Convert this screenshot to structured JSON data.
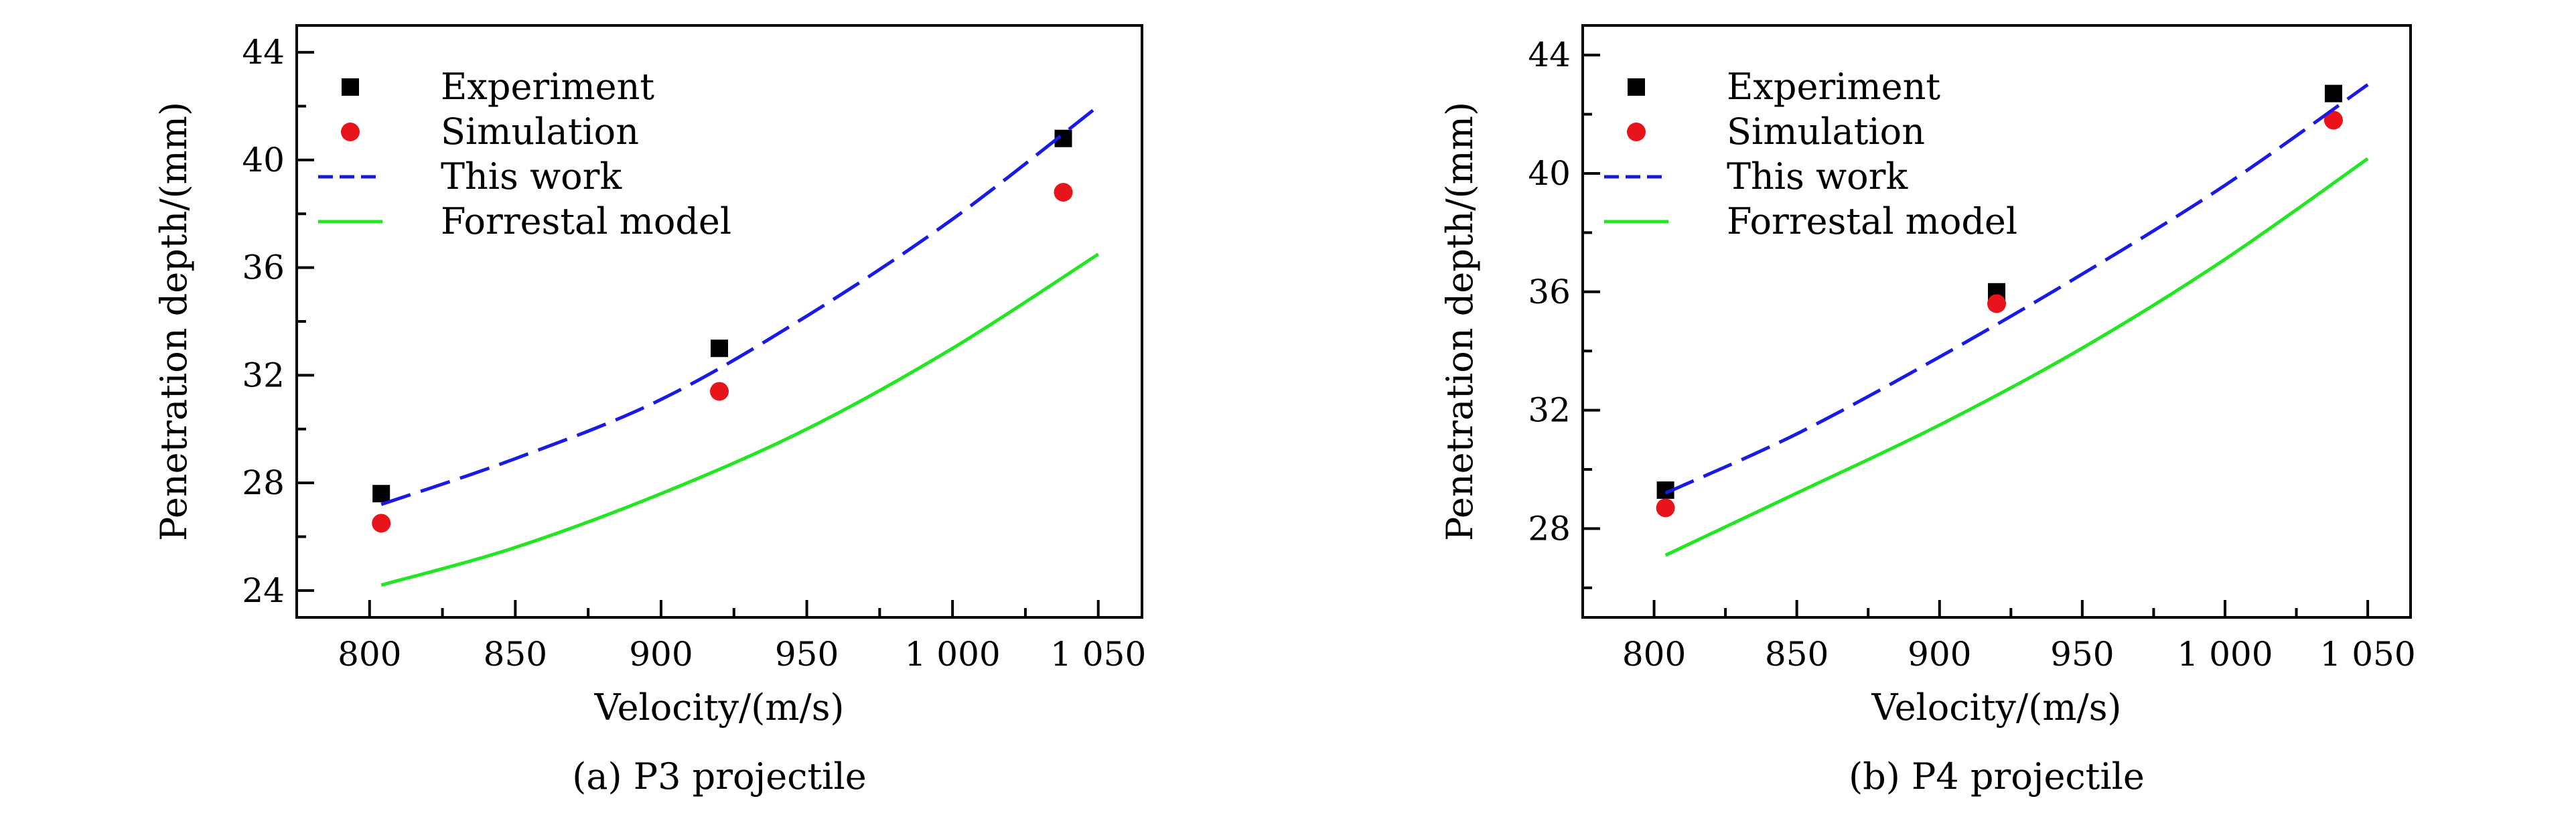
{
  "chart_data": [
    {
      "type": "line",
      "caption": "(a) P3 projectile",
      "xlabel": "Velocity/(m/s)",
      "ylabel": "Penetration depth/(mm)",
      "xlim": [
        775,
        1065
      ],
      "ylim": [
        23,
        45
      ],
      "xticks": [
        800,
        850,
        900,
        950,
        1000,
        1050
      ],
      "xtick_labels": [
        "800",
        "850",
        "900",
        "950",
        "1 000",
        "1 050"
      ],
      "yticks": [
        24,
        28,
        32,
        36,
        40,
        44
      ],
      "ytick_labels": [
        "24",
        "28",
        "32",
        "36",
        "40",
        "44"
      ],
      "grid": false,
      "legend_position": "top-left",
      "series": [
        {
          "name": "Experiment",
          "kind": "scatter",
          "marker": "square",
          "color": "#000000",
          "x": [
            804,
            920,
            1038
          ],
          "y": [
            27.6,
            33.0,
            40.8
          ]
        },
        {
          "name": "Simulation",
          "kind": "scatter",
          "marker": "circle",
          "color": "#e8141c",
          "x": [
            804,
            920,
            1038
          ],
          "y": [
            26.5,
            31.4,
            38.8
          ]
        },
        {
          "name": "This work",
          "kind": "line",
          "dash": true,
          "color": "#1a1ae6",
          "x": [
            804,
            850,
            900,
            950,
            1000,
            1050
          ],
          "y": [
            27.2,
            28.9,
            31.1,
            34.2,
            37.8,
            42.0
          ]
        },
        {
          "name": "Forrestal model",
          "kind": "line",
          "dash": false,
          "color": "#22e622",
          "x": [
            804,
            850,
            900,
            950,
            1000,
            1050
          ],
          "y": [
            24.2,
            25.6,
            27.6,
            30.0,
            33.0,
            36.5
          ]
        }
      ]
    },
    {
      "type": "line",
      "caption": "(b) P4 projectile",
      "xlabel": "Velocity/(m/s)",
      "ylabel": "Penetration depth/(mm)",
      "xlim": [
        775,
        1065
      ],
      "ylim": [
        25,
        45
      ],
      "xticks": [
        800,
        850,
        900,
        950,
        1000,
        1050
      ],
      "xtick_labels": [
        "800",
        "850",
        "900",
        "950",
        "1 000",
        "1 050"
      ],
      "yticks": [
        28,
        32,
        36,
        40,
        44
      ],
      "ytick_labels": [
        "28",
        "32",
        "36",
        "40",
        "44"
      ],
      "grid": false,
      "legend_position": "top-left",
      "series": [
        {
          "name": "Experiment",
          "kind": "scatter",
          "marker": "square",
          "color": "#000000",
          "x": [
            804,
            920,
            1038
          ],
          "y": [
            29.3,
            36.0,
            42.7
          ]
        },
        {
          "name": "Simulation",
          "kind": "scatter",
          "marker": "circle",
          "color": "#e8141c",
          "x": [
            804,
            920,
            1038
          ],
          "y": [
            28.7,
            35.6,
            41.8
          ]
        },
        {
          "name": "This work",
          "kind": "line",
          "dash": true,
          "color": "#1a1ae6",
          "x": [
            804,
            850,
            900,
            950,
            1000,
            1050
          ],
          "y": [
            29.2,
            31.2,
            33.8,
            36.6,
            39.6,
            43.0
          ]
        },
        {
          "name": "Forrestal model",
          "kind": "line",
          "dash": false,
          "color": "#22e622",
          "x": [
            804,
            850,
            900,
            950,
            1000,
            1050
          ],
          "y": [
            27.1,
            29.2,
            31.5,
            34.1,
            37.1,
            40.5
          ]
        }
      ]
    }
  ]
}
